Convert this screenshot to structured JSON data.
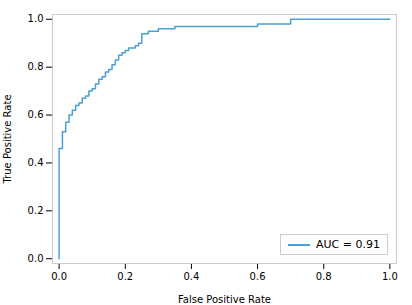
{
  "chart_data": {
    "type": "step",
    "x": [
      0.0,
      0.0,
      0.0,
      0.0,
      0.0,
      0.0,
      0.0,
      0.0,
      0.01,
      0.01,
      0.01,
      0.02,
      0.02,
      0.02,
      0.03,
      0.03,
      0.03,
      0.04,
      0.04,
      0.05,
      0.05,
      0.06,
      0.06,
      0.07,
      0.07,
      0.08,
      0.08,
      0.09,
      0.1,
      0.11,
      0.12,
      0.13,
      0.14,
      0.15,
      0.16,
      0.17,
      0.18,
      0.19,
      0.2,
      0.21,
      0.22,
      0.23,
      0.24,
      0.25,
      0.26,
      0.27,
      0.28,
      0.3,
      0.32,
      0.35,
      0.4,
      0.45,
      0.5,
      0.55,
      0.6,
      0.65,
      0.68,
      0.7,
      0.75,
      0.8,
      0.85,
      0.9,
      0.95,
      1.0
    ],
    "series": [
      {
        "name": "AUC = 0.91",
        "color": "#4c9fd4",
        "values": [
          0.0,
          0.03,
          0.06,
          0.1,
          0.14,
          0.18,
          0.27,
          0.46,
          0.46,
          0.48,
          0.53,
          0.53,
          0.55,
          0.57,
          0.57,
          0.59,
          0.6,
          0.6,
          0.62,
          0.62,
          0.64,
          0.64,
          0.65,
          0.65,
          0.67,
          0.67,
          0.68,
          0.7,
          0.71,
          0.73,
          0.75,
          0.76,
          0.78,
          0.79,
          0.81,
          0.83,
          0.85,
          0.86,
          0.87,
          0.88,
          0.88,
          0.89,
          0.9,
          0.94,
          0.94,
          0.95,
          0.95,
          0.96,
          0.96,
          0.97,
          0.97,
          0.97,
          0.97,
          0.97,
          0.98,
          0.98,
          0.98,
          1.0,
          1.0,
          1.0,
          1.0,
          1.0,
          1.0,
          1.0
        ]
      }
    ],
    "xlabel": "False Positive Rate",
    "ylabel": "True Positive Rate",
    "xlim": [
      -0.02,
      1.02
    ],
    "ylim": [
      -0.02,
      1.02
    ],
    "xticks": [
      {
        "value": 0,
        "label": "0.0"
      },
      0.2,
      0.4,
      0.6,
      0.8,
      {
        "value": 1,
        "label": "1.0"
      }
    ],
    "yticks": [
      {
        "value": 0,
        "label": "0.0"
      },
      0.2,
      0.4,
      0.6,
      0.8,
      {
        "value": 1,
        "label": "1.0"
      }
    ],
    "legend": "lower right",
    "grid": false
  }
}
